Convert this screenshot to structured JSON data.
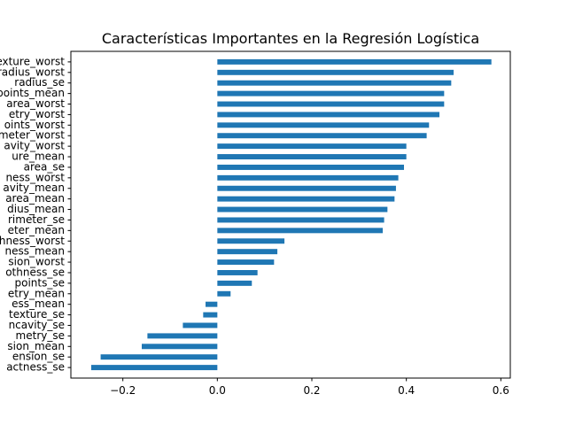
{
  "chart_data": {
    "type": "bar",
    "orientation": "horizontal",
    "title": "Características Importantes en la Regresión Logística",
    "xlabel": "",
    "ylabel": "",
    "xlim": [
      -0.31,
      0.62
    ],
    "xticks": [
      -0.2,
      0.0,
      0.2,
      0.4,
      0.6
    ],
    "xtick_labels": [
      "−0.2",
      "0.0",
      "0.2",
      "0.4",
      "0.6"
    ],
    "bar_color": "#1f77b4",
    "grid": false,
    "categories": [
      "texture_worst",
      "radius_worst",
      "radius_se",
      "points_mean",
      "area_worst",
      "etry_worst",
      "oints_worst",
      "meter_worst",
      "avity_worst",
      "ure_mean",
      "area_se",
      "ness_worst",
      "avity_mean",
      "area_mean",
      "dius_mean",
      "rimeter_se",
      "eter_mean",
      "hness_worst",
      "ness_mean",
      "sion_worst",
      "othness_se",
      "points_se",
      "etry_mean",
      "ess_mean",
      "texture_se",
      "ncavity_se",
      "metry_se",
      "sion_mean",
      "ension_se",
      "actness_se"
    ],
    "values": [
      0.58,
      0.5,
      0.495,
      0.48,
      0.48,
      0.47,
      0.448,
      0.443,
      0.4,
      0.4,
      0.395,
      0.383,
      0.378,
      0.375,
      0.36,
      0.353,
      0.35,
      0.142,
      0.127,
      0.12,
      0.085,
      0.073,
      0.028,
      -0.025,
      -0.03,
      -0.073,
      -0.148,
      -0.16,
      -0.247,
      -0.267
    ]
  }
}
